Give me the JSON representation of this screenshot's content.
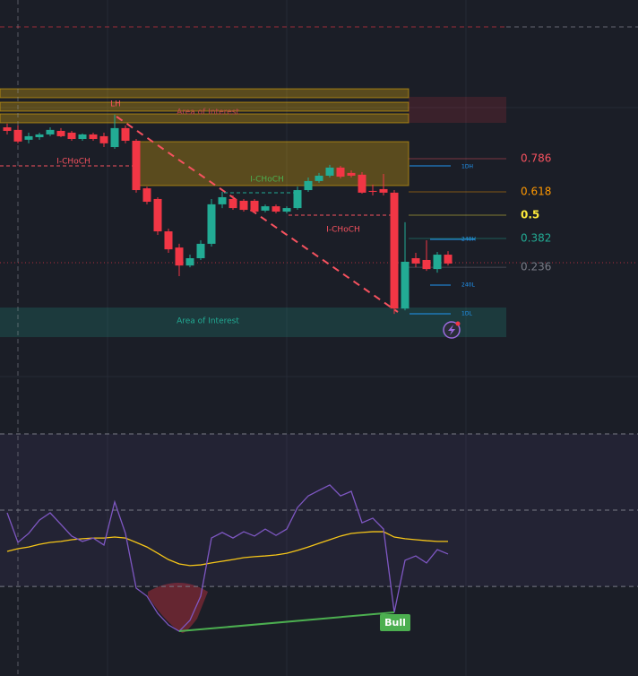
{
  "chart_data": {
    "type": "candlestick",
    "ylim": [
      -0.59,
      1.59
    ],
    "up_color": "#22ab94",
    "down_color": "#f23645",
    "ohlc": [
      [
        0.945,
        0.964,
        0.909,
        0.927
      ],
      [
        0.932,
        0.955,
        0.864,
        0.873
      ],
      [
        0.882,
        0.918,
        0.864,
        0.9
      ],
      [
        0.895,
        0.918,
        0.882,
        0.909
      ],
      [
        0.909,
        0.945,
        0.9,
        0.932
      ],
      [
        0.927,
        0.941,
        0.895,
        0.9
      ],
      [
        0.918,
        0.927,
        0.877,
        0.886
      ],
      [
        0.886,
        0.914,
        0.877,
        0.909
      ],
      [
        0.909,
        0.918,
        0.877,
        0.886
      ],
      [
        0.9,
        0.918,
        0.845,
        0.864
      ],
      [
        0.845,
        1.009,
        0.836,
        0.941
      ],
      [
        0.941,
        0.955,
        0.864,
        0.877
      ],
      [
        0.877,
        0.886,
        0.614,
        0.627
      ],
      [
        0.636,
        0.645,
        0.555,
        0.568
      ],
      [
        0.582,
        0.591,
        0.4,
        0.418
      ],
      [
        0.418,
        0.432,
        0.309,
        0.327
      ],
      [
        0.336,
        0.355,
        0.191,
        0.245
      ],
      [
        0.245,
        0.3,
        0.236,
        0.282
      ],
      [
        0.282,
        0.373,
        0.273,
        0.355
      ],
      [
        0.355,
        0.582,
        0.341,
        0.555
      ],
      [
        0.555,
        0.618,
        0.536,
        0.591
      ],
      [
        0.582,
        0.6,
        0.527,
        0.536
      ],
      [
        0.573,
        0.582,
        0.518,
        0.527
      ],
      [
        0.573,
        0.582,
        0.509,
        0.518
      ],
      [
        0.523,
        0.554,
        0.514,
        0.545
      ],
      [
        0.545,
        0.554,
        0.509,
        0.518
      ],
      [
        0.518,
        0.545,
        0.509,
        0.536
      ],
      [
        0.536,
        0.645,
        0.527,
        0.627
      ],
      [
        0.627,
        0.691,
        0.618,
        0.673
      ],
      [
        0.673,
        0.714,
        0.664,
        0.7
      ],
      [
        0.7,
        0.755,
        0.691,
        0.741
      ],
      [
        0.741,
        0.75,
        0.686,
        0.695
      ],
      [
        0.714,
        0.727,
        0.691,
        0.7
      ],
      [
        0.705,
        0.718,
        0.609,
        0.614
      ],
      [
        0.623,
        0.655,
        0.6,
        0.618
      ],
      [
        0.632,
        0.709,
        0.6,
        0.614
      ],
      [
        0.614,
        0.627,
        0,
        0.027
      ],
      [
        0.027,
        0.464,
        0.018,
        0.264
      ],
      [
        0.282,
        0.309,
        0.236,
        0.255
      ],
      [
        0.273,
        0.373,
        0.218,
        0.227
      ],
      [
        0.227,
        0.314,
        0.209,
        0.3
      ],
      [
        0.3,
        0.318,
        0.245,
        0.255
      ]
    ],
    "fib": {
      "levels": [
        0.786,
        0.618,
        0.5,
        0.382,
        0.236
      ],
      "colors": [
        "#f7525f",
        "#ff9800",
        "#ffeb3b",
        "#22ab94",
        "#787b86"
      ]
    },
    "annotations": {
      "lh": "LH",
      "area_top": "Area of Interest",
      "area_bottom": "Area of Interest",
      "choch": [
        "I-CHoCH",
        "I-CHoCH",
        "I-CHoCH"
      ],
      "levels": [
        "1DH",
        "240H",
        "240L",
        "1DL"
      ],
      "bull": "Bull"
    },
    "oscillator": {
      "ylim": [
        0,
        100
      ],
      "levels": [
        68.5,
        37
      ],
      "rsi": {
        "color": "#7e57c2",
        "values": [
          67.4,
          55.2,
          58.9,
          64.4,
          67.4,
          62.6,
          57.8,
          55.6,
          57.0,
          54.1,
          71.9,
          58.9,
          36.3,
          33.0,
          25.9,
          21.1,
          18.5,
          23.0,
          33.0,
          57.0,
          59.3,
          57.0,
          59.6,
          57.8,
          60.7,
          58.1,
          60.7,
          69.6,
          74.4,
          76.7,
          78.9,
          74.4,
          76.3,
          63.3,
          65.2,
          60.7,
          26.3,
          47.8,
          49.6,
          46.7,
          52.2,
          50.4
        ]
      },
      "ma": {
        "color": "#f5c518",
        "values": [
          51.5,
          52.6,
          53.3,
          54.4,
          55.2,
          55.6,
          56.3,
          56.7,
          57.0,
          57.0,
          57.4,
          57.0,
          55.2,
          53.3,
          50.7,
          48.1,
          46.3,
          45.6,
          45.9,
          46.7,
          47.4,
          48.1,
          48.9,
          49.3,
          49.6,
          50.0,
          50.7,
          51.9,
          53.3,
          54.8,
          56.3,
          57.8,
          58.9,
          59.3,
          59.6,
          59.6,
          57.4,
          56.7,
          56.3,
          55.9,
          55.6,
          55.6
        ]
      },
      "divergence_color": "#4caf50"
    }
  }
}
